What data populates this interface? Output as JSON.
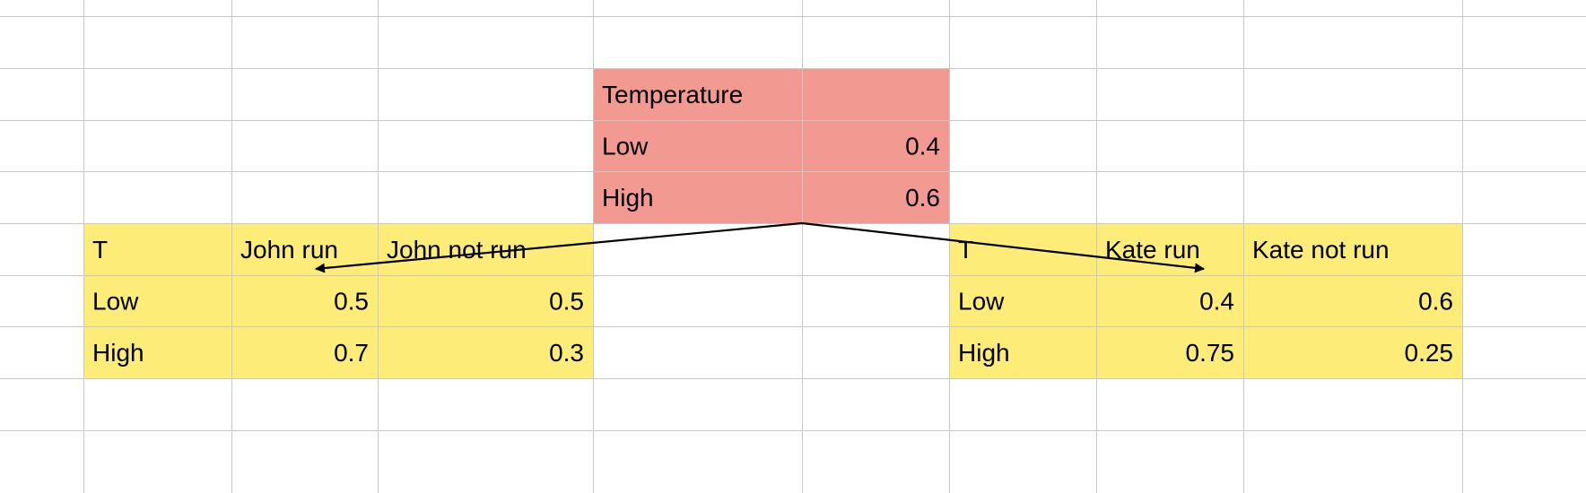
{
  "colors": {
    "gridline": "#c8c8c8",
    "background": "#ffffff",
    "prior_fill": "#f29a91",
    "conditional_fill": "#fdec77",
    "arrow": "#000000",
    "text": "#000000"
  },
  "tables": [
    {
      "id": "temperature",
      "fill": "prior",
      "rows": [
        [
          "Temperature",
          ""
        ],
        [
          "Low",
          "0.4"
        ],
        [
          "High",
          "0.6"
        ]
      ]
    },
    {
      "id": "john",
      "fill": "conditional",
      "rows": [
        [
          "T",
          "John run",
          "John not run"
        ],
        [
          "Low",
          "0.5",
          "0.5"
        ],
        [
          "High",
          "0.7",
          "0.3"
        ]
      ]
    },
    {
      "id": "kate",
      "fill": "conditional",
      "rows": [
        [
          "T",
          "Kate run",
          "Kate not run"
        ],
        [
          "Low",
          "0.4",
          "0.6"
        ],
        [
          "High",
          "0.75",
          "0.25"
        ]
      ]
    }
  ],
  "edges": [
    {
      "from": "temperature",
      "to": "john"
    },
    {
      "from": "temperature",
      "to": "kate"
    }
  ]
}
